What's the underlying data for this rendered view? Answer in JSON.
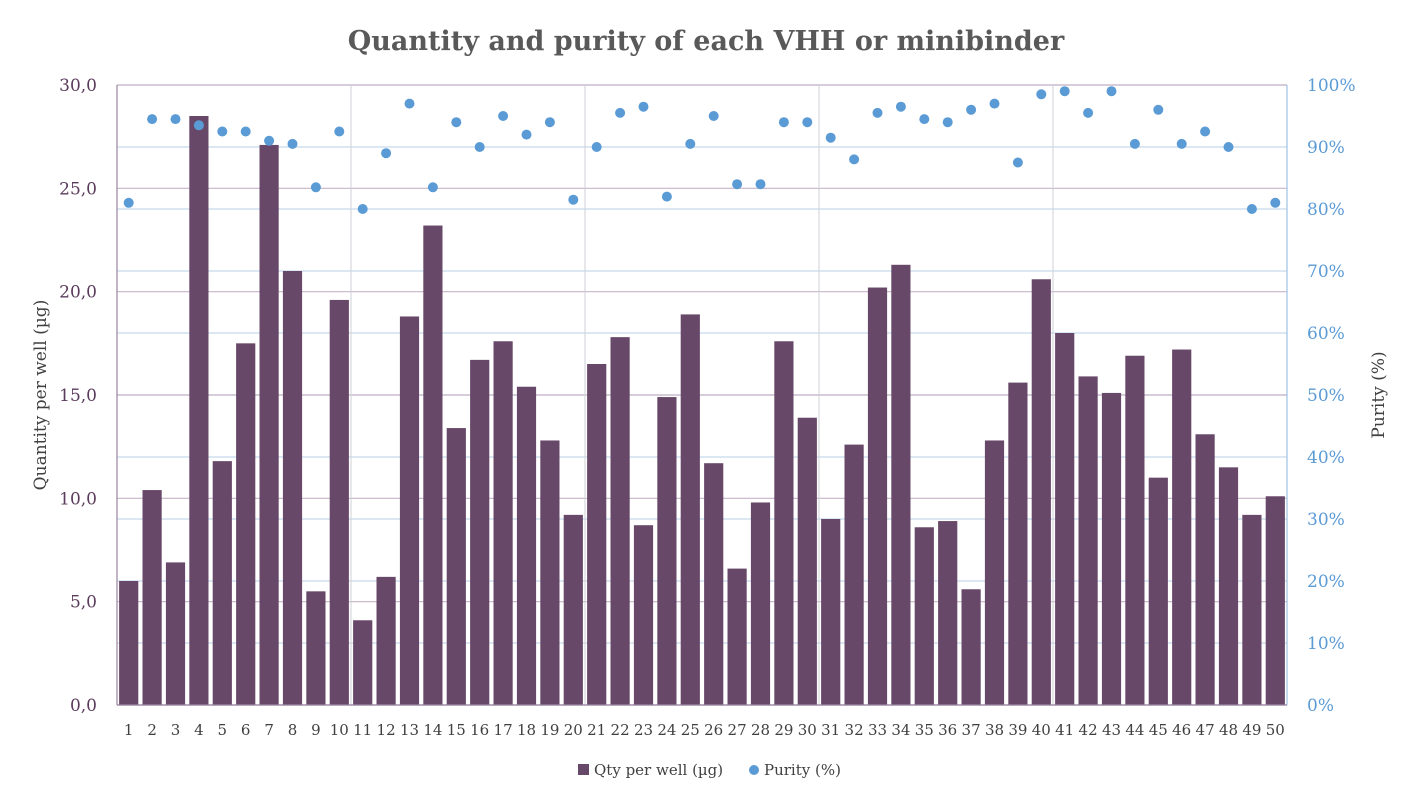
{
  "chart_data": {
    "type": "bar",
    "title": "Quantity and purity of each VHH or minibinder",
    "categories": [
      "1",
      "2",
      "3",
      "4",
      "5",
      "6",
      "7",
      "8",
      "9",
      "10",
      "11",
      "12",
      "13",
      "14",
      "15",
      "16",
      "17",
      "18",
      "19",
      "20",
      "21",
      "22",
      "23",
      "24",
      "25",
      "26",
      "27",
      "28",
      "29",
      "30",
      "31",
      "32",
      "33",
      "34",
      "35",
      "36",
      "37",
      "38",
      "39",
      "40",
      "41",
      "42",
      "43",
      "44",
      "45",
      "46",
      "47",
      "48",
      "49",
      "50"
    ],
    "y_left": {
      "label": "Quantity per well (µg)",
      "ylim": [
        0,
        30
      ],
      "ticks": [
        "0,0",
        "5,0",
        "10,0",
        "15,0",
        "20,0",
        "25,0",
        "30,0"
      ],
      "tick_values": [
        0,
        5,
        10,
        15,
        20,
        25,
        30
      ]
    },
    "y_right": {
      "label": "Purity (%)",
      "ylim": [
        0,
        100
      ],
      "ticks": [
        "0%",
        "10%",
        "20%",
        "30%",
        "40%",
        "50%",
        "60%",
        "70%",
        "80%",
        "90%",
        "100%"
      ],
      "tick_values": [
        0,
        10,
        20,
        30,
        40,
        50,
        60,
        70,
        80,
        90,
        100
      ]
    },
    "series": [
      {
        "name": "Qty per well (µg)",
        "type": "bar",
        "axis": "left",
        "color": "#684868",
        "values": [
          6.0,
          10.4,
          6.9,
          28.5,
          11.8,
          17.5,
          27.1,
          21.0,
          5.5,
          19.6,
          4.1,
          6.2,
          18.8,
          23.2,
          13.4,
          16.7,
          17.6,
          15.4,
          12.8,
          9.2,
          16.5,
          17.8,
          8.7,
          14.9,
          18.9,
          11.7,
          6.6,
          9.8,
          17.6,
          13.9,
          9.0,
          12.6,
          20.2,
          21.3,
          8.6,
          8.9,
          5.6,
          12.8,
          15.6,
          20.6,
          18.0,
          15.9,
          15.1,
          16.9,
          11.0,
          17.2,
          13.1,
          11.5,
          9.2,
          10.1
        ]
      },
      {
        "name": "Purity (%)",
        "type": "scatter",
        "axis": "right",
        "color": "#5b9bd5",
        "values": [
          81,
          94.5,
          94.5,
          93.5,
          92.5,
          92.5,
          91,
          90.5,
          83.5,
          92.5,
          80,
          89,
          97,
          83.5,
          94,
          90,
          95,
          92,
          94,
          81.5,
          90,
          95.5,
          96.5,
          82,
          90.5,
          95,
          84,
          84,
          94,
          94,
          91.5,
          88,
          95.5,
          96.5,
          94.5,
          94,
          96,
          97,
          87.5,
          98.5,
          99,
          95.5,
          99,
          90.5,
          96,
          90.5,
          92.5,
          90,
          80,
          81
        ]
      }
    ],
    "legend": "bottom",
    "grid": true
  }
}
